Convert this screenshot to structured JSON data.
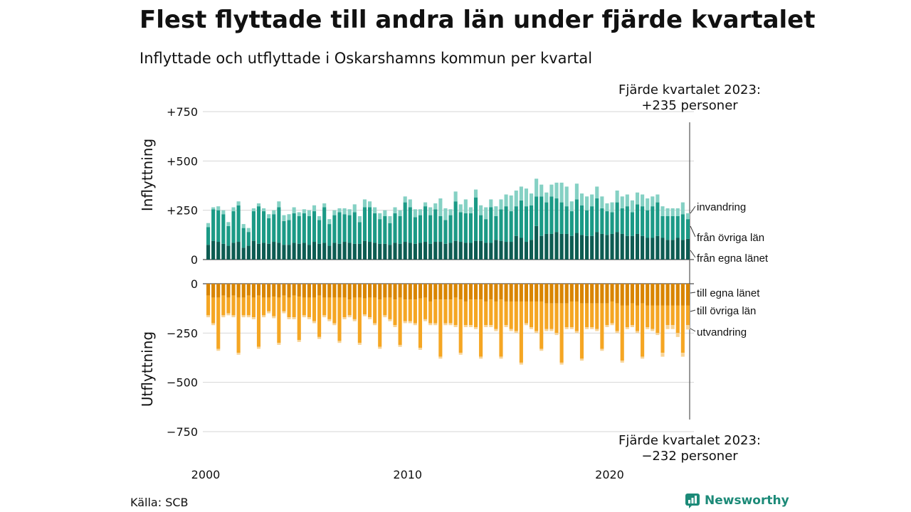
{
  "header": {
    "title": "Flest flyttade till andra län under fjärde kvartalet",
    "subtitle": "Inflyttade och utflyttade i Oskarshamns kommun per kvartal"
  },
  "footer": {
    "source": "Källa: SCB",
    "brand": "Newsworthy"
  },
  "colors": {
    "in_own": "#0d5c52",
    "in_other": "#1b9a86",
    "in_immigration": "#85d1c4",
    "out_own": "#d98500",
    "out_other": "#f5a623",
    "out_emigration": "#f8d497",
    "grid": "#d6d6d6",
    "brand": "#1c8a78"
  },
  "chart_data": {
    "type": "bar",
    "stacked": true,
    "categories_start": "2000 Q1",
    "categories_end": "2023 Q4",
    "x_ticks": [
      "2000",
      "2010",
      "2020"
    ],
    "top_panel": {
      "ylabel": "Inflyttning",
      "yticks": [
        "0",
        "+250",
        "+500",
        "+750"
      ],
      "ylim": [
        0,
        750
      ],
      "series_labels": [
        "invandring",
        "från övriga län",
        "från egna länet"
      ],
      "annotation": [
        "Fjärde kvartalet 2023:",
        "+235 personer"
      ]
    },
    "bottom_panel": {
      "ylabel": "Utflyttning",
      "yticks": [
        "0",
        "−250",
        "−500",
        "−750"
      ],
      "ylim": [
        -750,
        0
      ],
      "series_labels": [
        "till egna länet",
        "till övriga län",
        "utvandring"
      ],
      "annotation": [
        "Fjärde kvartalet 2023:",
        "−232 personer"
      ]
    },
    "series_in": [
      {
        "name": "från egna länet",
        "values": [
          75,
          95,
          90,
          80,
          70,
          85,
          90,
          60,
          70,
          95,
          80,
          85,
          80,
          90,
          85,
          75,
          75,
          85,
          80,
          85,
          75,
          90,
          80,
          85,
          70,
          85,
          80,
          90,
          85,
          80,
          80,
          95,
          90,
          85,
          80,
          80,
          75,
          85,
          80,
          90,
          85,
          80,
          85,
          90,
          80,
          90,
          90,
          80,
          85,
          95,
          90,
          85,
          85,
          95,
          95,
          85,
          85,
          100,
          95,
          90,
          90,
          120,
          110,
          90,
          100,
          170,
          120,
          130,
          130,
          140,
          130,
          130,
          120,
          135,
          125,
          120,
          120,
          140,
          130,
          125,
          130,
          140,
          130,
          120,
          120,
          130,
          120,
          110,
          110,
          120,
          110,
          100,
          100,
          110,
          100,
          105
        ]
      },
      {
        "name": "från övriga län",
        "values": [
          90,
          160,
          160,
          150,
          100,
          160,
          185,
          100,
          70,
          150,
          190,
          160,
          130,
          140,
          180,
          120,
          125,
          150,
          140,
          150,
          145,
          155,
          120,
          180,
          110,
          140,
          160,
          140,
          140,
          160,
          110,
          170,
          175,
          150,
          125,
          140,
          110,
          150,
          140,
          200,
          180,
          135,
          140,
          180,
          145,
          165,
          130,
          120,
          140,
          200,
          150,
          150,
          150,
          220,
          130,
          120,
          180,
          120,
          160,
          180,
          155,
          150,
          190,
          180,
          175,
          150,
          200,
          160,
          190,
          170,
          160,
          140,
          125,
          170,
          150,
          130,
          150,
          170,
          130,
          120,
          110,
          150,
          130,
          150,
          120,
          150,
          150,
          140,
          160,
          170,
          110,
          120,
          120,
          110,
          130,
          100
        ]
      },
      {
        "name": "invandring",
        "values": [
          20,
          10,
          20,
          20,
          20,
          20,
          20,
          20,
          20,
          15,
          15,
          15,
          20,
          20,
          30,
          30,
          30,
          30,
          20,
          20,
          30,
          30,
          20,
          20,
          25,
          25,
          20,
          30,
          30,
          40,
          30,
          40,
          30,
          30,
          30,
          30,
          35,
          30,
          30,
          30,
          40,
          40,
          30,
          20,
          40,
          30,
          90,
          60,
          30,
          50,
          40,
          70,
          30,
          40,
          50,
          60,
          40,
          50,
          50,
          60,
          80,
          80,
          70,
          90,
          60,
          90,
          60,
          50,
          60,
          80,
          100,
          100,
          50,
          80,
          60,
          70,
          60,
          60,
          60,
          40,
          50,
          60,
          60,
          60,
          60,
          60,
          60,
          60,
          50,
          40,
          50,
          40,
          40,
          40,
          60,
          30
        ]
      },
      {
        "name": "utflyttning till egna länet",
        "values": [
          -60,
          -70,
          -70,
          -60,
          -70,
          -60,
          -70,
          -70,
          -60,
          -70,
          -60,
          -70,
          -70,
          -65,
          -70,
          -60,
          -70,
          -60,
          -65,
          -70,
          -70,
          -70,
          -60,
          -70,
          -70,
          -70,
          -70,
          -70,
          -80,
          -70,
          -70,
          -75,
          -70,
          -70,
          -80,
          -70,
          -70,
          -80,
          -70,
          -80,
          -80,
          -80,
          -75,
          -70,
          -90,
          -80,
          -80,
          -80,
          -80,
          -70,
          -80,
          -90,
          -80,
          -80,
          -80,
          -90,
          -80,
          -90,
          -80,
          -90,
          -90,
          -90,
          -90,
          -90,
          -90,
          -90,
          -90,
          -100,
          -100,
          -100,
          -100,
          -100,
          -90,
          -90,
          -100,
          -100,
          -100,
          -100,
          -100,
          -100,
          -90,
          -100,
          -110,
          -110,
          -100,
          -110,
          -100,
          -110,
          -110,
          -110,
          -110,
          -110,
          -110,
          -110,
          -110,
          -110
        ]
      },
      {
        "name": "utflyttning till övriga län",
        "values": [
          -100,
          -130,
          -260,
          -100,
          -80,
          -100,
          -280,
          -90,
          -100,
          -100,
          -260,
          -90,
          -70,
          -100,
          -230,
          -80,
          -100,
          -110,
          -220,
          -90,
          -100,
          -120,
          -210,
          -90,
          -110,
          -130,
          -220,
          -100,
          -80,
          -110,
          -230,
          -80,
          -100,
          -130,
          -240,
          -90,
          -110,
          -130,
          -240,
          -110,
          -110,
          -120,
          -250,
          -110,
          -110,
          -120,
          -290,
          -120,
          -120,
          -140,
          -270,
          -120,
          -130,
          -140,
          -290,
          -120,
          -130,
          -140,
          -290,
          -120,
          -140,
          -150,
          -310,
          -110,
          -130,
          -150,
          -240,
          -130,
          -130,
          -150,
          -300,
          -120,
          -130,
          -150,
          -280,
          -120,
          -120,
          -130,
          -230,
          -110,
          -110,
          -140,
          -280,
          -110,
          -110,
          -130,
          -270,
          -110,
          -120,
          -140,
          -240,
          -100,
          -100,
          -140,
          -240,
          -100
        ]
      },
      {
        "name": "utvandring",
        "values": [
          -10,
          -10,
          -10,
          -10,
          -10,
          -10,
          -10,
          -10,
          -10,
          -10,
          -10,
          -10,
          -10,
          -10,
          -10,
          -10,
          -10,
          -10,
          -10,
          -10,
          -10,
          -10,
          -10,
          -10,
          -10,
          -10,
          -10,
          -10,
          -10,
          -10,
          -10,
          -10,
          -10,
          -10,
          -10,
          -10,
          -10,
          -10,
          -10,
          -10,
          -10,
          -10,
          -10,
          -10,
          -10,
          -10,
          -10,
          -10,
          -10,
          -10,
          -10,
          -10,
          -10,
          -10,
          -10,
          -10,
          -10,
          -10,
          -10,
          -10,
          -10,
          -10,
          -10,
          -10,
          -10,
          -10,
          -10,
          -10,
          -10,
          -10,
          -10,
          -10,
          -10,
          -10,
          -10,
          -10,
          -10,
          -10,
          -10,
          -10,
          -10,
          -10,
          -10,
          -10,
          -10,
          -10,
          -10,
          -10,
          -10,
          -10,
          -20,
          -20,
          -20,
          -20,
          -20,
          -22
        ]
      }
    ]
  }
}
